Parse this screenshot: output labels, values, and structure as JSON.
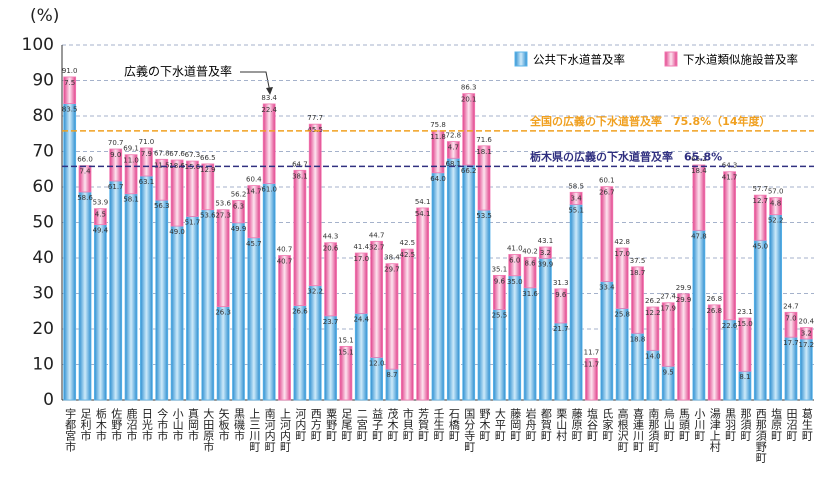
{
  "chart_data": {
    "type": "stacked_bar",
    "y_unit_label": "(%)",
    "categories": [
      "宇都宮市",
      "足利市",
      "栃木市",
      "佐野市",
      "鹿沼市",
      "日光市",
      "今市市",
      "小山市",
      "真岡市",
      "大田原市",
      "矢板市",
      "黒磯市",
      "上三川町",
      "南河内町",
      "上河内町",
      "河内町",
      "西方町",
      "粟野町",
      "足尾町",
      "二宮町",
      "益子町",
      "茂木町",
      "市貝町",
      "芳賀町",
      "壬生町",
      "石橋町",
      "国分寺町",
      "野木町",
      "大平町",
      "藤岡町",
      "岩舟町",
      "都賀町",
      "栗山村",
      "藤原町",
      "塩谷町",
      "氏家町",
      "高根沢町",
      "喜連川町",
      "南那須町",
      "烏山町",
      "馬頭町",
      "小川町",
      "湯津上村",
      "黒羽町",
      "那須町",
      "西那須野町",
      "塩原町",
      "田沼町",
      "葛生町"
    ],
    "series": [
      {
        "name": "公共下水道普及率",
        "color": "#5ab4ea",
        "values": [
          83.5,
          58.6,
          49.4,
          61.7,
          58.1,
          63.1,
          56.3,
          49.0,
          51.7,
          53.6,
          26.3,
          49.9,
          45.7,
          61.0,
          null,
          26.6,
          32.2,
          23.7,
          null,
          24.4,
          12.0,
          8.7,
          null,
          null,
          64.0,
          68.1,
          66.2,
          53.5,
          25.5,
          35.0,
          31.6,
          39.9,
          21.7,
          55.1,
          null,
          33.4,
          25.8,
          18.8,
          14.0,
          9.5,
          null,
          47.8,
          null,
          22.6,
          8.1,
          45.0,
          52.2,
          17.7,
          17.2
        ],
        "value_labels": [
          "83.5",
          "58.6",
          "49.4",
          "61.7",
          "58.1",
          "63.1",
          "56.3",
          "49.0",
          "51.7",
          "53.6",
          "26.3",
          "49.9",
          "45.7",
          "61.0",
          null,
          "26.6",
          "32.2",
          "23.7",
          null,
          "24.4",
          "12.0",
          "8.7",
          null,
          null,
          "64.0",
          "68.1",
          "66.2",
          "53.5",
          "25.5",
          "35.0",
          "31.6",
          "39.9",
          "21.7",
          "55.1",
          null,
          "33.4",
          "25.8",
          "18.8",
          "14.0",
          "9.5",
          null,
          "47.8",
          null,
          "22.6",
          "8.1",
          "45.0",
          "52.2",
          "17.7",
          "17.2"
        ]
      },
      {
        "name": "下水道類似施設普及率",
        "color": "#f27ab2",
        "values": [
          7.5,
          7.4,
          4.5,
          9.0,
          11.0,
          7.9,
          11.5,
          18.6,
          15.6,
          12.9,
          27.3,
          6.3,
          14.7,
          22.4,
          40.7,
          38.1,
          45.5,
          20.6,
          15.1,
          17.0,
          32.7,
          29.7,
          42.5,
          54.1,
          11.8,
          4.7,
          20.1,
          18.1,
          9.6,
          6.0,
          8.6,
          3.2,
          9.6,
          3.4,
          11.7,
          26.7,
          17.0,
          18.7,
          12.2,
          17.9,
          29.9,
          18.4,
          26.8,
          41.7,
          15.0,
          12.7,
          4.8,
          7.0,
          3.2
        ],
        "value_labels": [
          "7.5",
          "7.4",
          "4.5",
          "9.0",
          "11.0",
          "7.9",
          "11.5",
          "18.6",
          "15.6",
          "12.9",
          "27.3",
          "6.3",
          "14.7",
          "22.4",
          "40.7",
          "38.1",
          "45.5",
          "20.6",
          "15.1",
          "17.0",
          "32.7",
          "29.7",
          "42.5",
          "54.1",
          "11.8",
          "4.7",
          "20.1",
          "18.1",
          "9.6",
          "6.0",
          "8.6",
          "3.2",
          "9.6",
          "3.4",
          "11.7",
          "26.7",
          "17.0",
          "18.7",
          "12.2",
          "17.9",
          "29.9",
          "18.4",
          "26.8",
          "41.7",
          "15.0",
          "12.7",
          "4.8",
          "7.0",
          "3.2"
        ]
      }
    ],
    "total_labels": [
      "91.0",
      "66.0",
      "53.9",
      "70.7",
      "69.1",
      "71.0",
      "67.8",
      "67.6",
      "67.3",
      "66.5",
      "53.6",
      "56.2",
      "60.4",
      "83.4",
      "40.7",
      "64.7",
      "77.7",
      "44.3",
      "15.1",
      "41.4",
      "44.7",
      "38.4",
      "42.5",
      "54.1",
      "75.8",
      "72.8",
      "86.3",
      "71.6",
      "35.1",
      "41.0",
      "40.2",
      "43.1",
      "31.3",
      "58.5",
      "11.7",
      "60.1",
      "42.8",
      "37.5",
      "26.2",
      "27.4",
      "29.9",
      "66.2",
      "26.8",
      "64.3",
      "23.1",
      "57.7",
      "57.0",
      "24.7",
      "20.4"
    ],
    "ylim": [
      0,
      100
    ],
    "yticks": [
      0,
      10,
      20,
      30,
      40,
      50,
      60,
      70,
      80,
      90,
      100
    ],
    "grid": true,
    "legend": "top-right",
    "annotation": "広義の下水道普及率",
    "reference_lines": [
      {
        "value": 75.8,
        "label": "全国の広義の下水道普及率　75.8%（14年度）",
        "color": "#f0a020"
      },
      {
        "value": 65.8,
        "label": "栃木県の広義の下水道普及率　65.8%",
        "color": "#303080"
      }
    ]
  }
}
